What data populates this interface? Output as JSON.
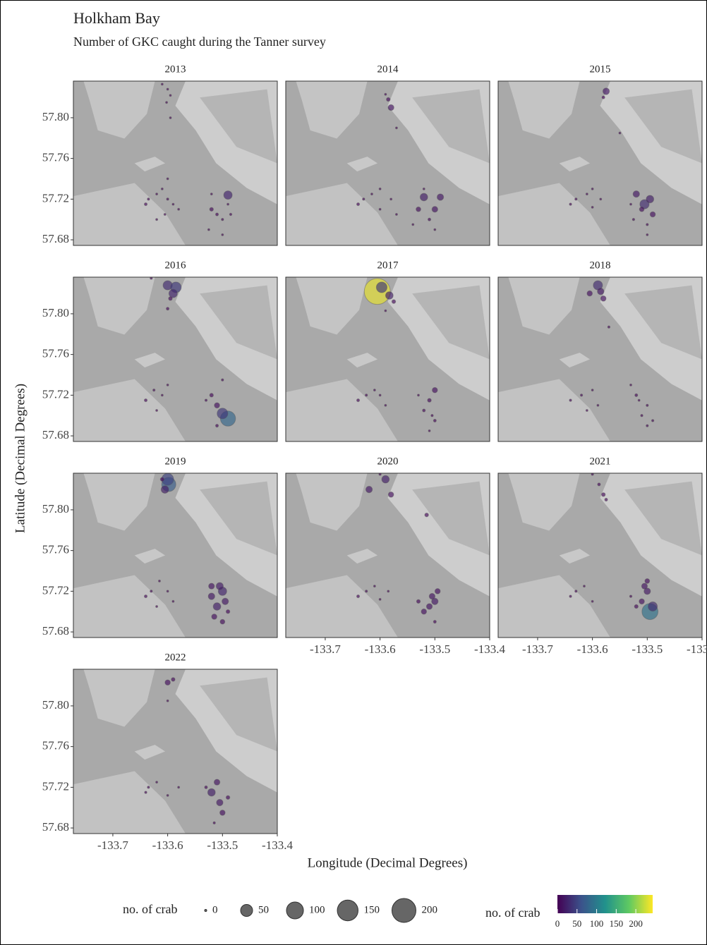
{
  "chart_data": {
    "type": "scatter",
    "title": "Holkham Bay",
    "subtitle": "Number of GKC caught during the Tanner survey",
    "xlabel": "Longitude (Decimal Degrees)",
    "ylabel": "Latitude (Decimal Degrees)",
    "xlim": [
      -133.772,
      -133.4
    ],
    "xticks": [
      -133.7,
      -133.6,
      -133.5,
      -133.4
    ],
    "ylim": [
      57.6745,
      57.836
    ],
    "yticks": [
      {
        "value": 57.68,
        "label": "57.68"
      },
      {
        "value": 57.72,
        "label": "57.72"
      },
      {
        "value": 57.76,
        "label": "57.76"
      },
      {
        "value": 57.8,
        "label": "57.80"
      }
    ],
    "colormap": [
      "#440154",
      "#3b528b",
      "#21918c",
      "#5ec962",
      "#fde725"
    ],
    "color_lim": [
      0,
      243
    ],
    "size_legend": {
      "title": "no. of crab",
      "values": [
        0,
        50,
        100,
        150,
        200
      ]
    },
    "color_legend": {
      "title": "no. of crab",
      "ticks": [
        0,
        50,
        100,
        150,
        200
      ]
    },
    "facets": [
      {
        "title": "2013",
        "x": [
          -133.61,
          -133.6,
          -133.595,
          -133.602,
          -133.595,
          -133.64,
          -133.635,
          -133.62,
          -133.61,
          -133.6,
          -133.59,
          -133.605,
          -133.62,
          -133.58,
          -133.6,
          -133.49,
          -133.52,
          -133.51,
          -133.5,
          -133.525,
          -133.49,
          -133.5,
          -133.485,
          -133.52
        ],
        "y": [
          57.833,
          57.828,
          57.822,
          57.815,
          57.8,
          57.715,
          57.72,
          57.725,
          57.73,
          57.72,
          57.715,
          57.705,
          57.7,
          57.71,
          57.74,
          57.724,
          57.71,
          57.705,
          57.7,
          57.69,
          57.715,
          57.685,
          57.705,
          57.725
        ],
        "sizes": [
          1,
          1,
          1,
          1,
          1,
          3,
          2,
          1,
          1,
          2,
          1,
          1,
          1,
          1,
          1,
          25,
          5,
          3,
          2,
          1,
          1,
          1,
          2,
          1
        ]
      },
      {
        "title": "2014",
        "x": [
          -133.59,
          -133.585,
          -133.58,
          -133.57,
          -133.64,
          -133.63,
          -133.615,
          -133.6,
          -133.58,
          -133.57,
          -133.6,
          -133.52,
          -133.49,
          -133.5,
          -133.53,
          -133.51,
          -133.54,
          -133.5,
          -133.52
        ],
        "y": [
          57.823,
          57.818,
          57.81,
          57.79,
          57.715,
          57.72,
          57.725,
          57.71,
          57.72,
          57.705,
          57.73,
          57.722,
          57.722,
          57.71,
          57.71,
          57.7,
          57.695,
          57.69,
          57.73
        ],
        "sizes": [
          1,
          5,
          12,
          1,
          3,
          2,
          1,
          1,
          1,
          1,
          1,
          20,
          15,
          12,
          8,
          3,
          1,
          1,
          1
        ]
      },
      {
        "title": "2015",
        "x": [
          -133.575,
          -133.58,
          -133.55,
          -133.64,
          -133.63,
          -133.61,
          -133.6,
          -133.585,
          -133.6,
          -133.52,
          -133.505,
          -133.495,
          -133.49,
          -133.51,
          -133.525,
          -133.5,
          -133.53,
          -133.5
        ],
        "y": [
          57.826,
          57.82,
          57.785,
          57.715,
          57.72,
          57.725,
          57.712,
          57.72,
          57.73,
          57.725,
          57.715,
          57.72,
          57.705,
          57.71,
          57.7,
          57.695,
          57.715,
          57.685
        ],
        "sizes": [
          15,
          3,
          1,
          2,
          2,
          1,
          1,
          1,
          1,
          15,
          30,
          20,
          10,
          8,
          2,
          2,
          1,
          1
        ]
      },
      {
        "title": "2016",
        "x": [
          -133.6,
          -133.585,
          -133.59,
          -133.595,
          -133.6,
          -133.63,
          -133.64,
          -133.625,
          -133.61,
          -133.6,
          -133.62,
          -133.49,
          -133.5,
          -133.51,
          -133.52,
          -133.53,
          -133.5,
          -133.51
        ],
        "y": [
          57.828,
          57.826,
          57.82,
          57.815,
          57.805,
          57.835,
          57.715,
          57.725,
          57.72,
          57.73,
          57.705,
          57.697,
          57.702,
          57.71,
          57.72,
          57.715,
          57.735,
          57.69
        ],
        "sizes": [
          30,
          40,
          25,
          5,
          3,
          2,
          3,
          2,
          1,
          1,
          1,
          80,
          40,
          10,
          5,
          2,
          2,
          3
        ]
      },
      {
        "title": "2017",
        "x": [
          -133.605,
          -133.597,
          -133.583,
          -133.575,
          -133.59,
          -133.64,
          -133.625,
          -133.61,
          -133.59,
          -133.6,
          -133.5,
          -133.51,
          -133.52,
          -133.505,
          -133.53,
          -133.5,
          -133.51
        ],
        "y": [
          57.822,
          57.826,
          57.818,
          57.812,
          57.803,
          57.715,
          57.72,
          57.725,
          57.71,
          57.72,
          57.725,
          57.715,
          57.705,
          57.7,
          57.72,
          57.695,
          57.685
        ],
        "sizes": [
          235,
          40,
          20,
          5,
          1,
          3,
          2,
          1,
          1,
          1,
          10,
          5,
          3,
          2,
          1,
          3,
          1
        ]
      },
      {
        "title": "2018",
        "x": [
          -133.59,
          -133.605,
          -133.58,
          -133.585,
          -133.57,
          -133.64,
          -133.62,
          -133.6,
          -133.59,
          -133.61,
          -133.52,
          -133.5,
          -133.51,
          -133.49,
          -133.53,
          -133.5,
          -133.515
        ],
        "y": [
          57.828,
          57.82,
          57.815,
          57.822,
          57.787,
          57.715,
          57.72,
          57.725,
          57.71,
          57.705,
          57.72,
          57.71,
          57.7,
          57.695,
          57.73,
          57.69,
          57.715
        ],
        "sizes": [
          30,
          10,
          10,
          15,
          2,
          2,
          2,
          1,
          1,
          1,
          3,
          2,
          2,
          2,
          1,
          2,
          1
        ]
      },
      {
        "title": "2019",
        "x": [
          -133.598,
          -133.6,
          -133.605,
          -133.61,
          -133.64,
          -133.63,
          -133.615,
          -133.6,
          -133.59,
          -133.62,
          -133.5,
          -133.51,
          -133.52,
          -133.495,
          -133.505,
          -133.515,
          -133.5,
          -133.52,
          -133.49
        ],
        "y": [
          57.825,
          57.83,
          57.82,
          57.83,
          57.715,
          57.72,
          57.73,
          57.72,
          57.71,
          57.705,
          57.72,
          57.705,
          57.715,
          57.71,
          57.725,
          57.695,
          57.69,
          57.725,
          57.7
        ],
        "sizes": [
          70,
          50,
          20,
          5,
          3,
          2,
          1,
          1,
          1,
          1,
          25,
          20,
          15,
          15,
          18,
          10,
          8,
          12,
          5
        ]
      },
      {
        "title": "2020",
        "x": [
          -133.62,
          -133.59,
          -133.58,
          -133.515,
          -133.6,
          -133.64,
          -133.625,
          -133.61,
          -133.6,
          -133.585,
          -133.5,
          -133.51,
          -133.52,
          -133.505,
          -133.495,
          -133.53,
          -133.5
        ],
        "y": [
          57.82,
          57.83,
          57.815,
          57.795,
          57.835,
          57.715,
          57.72,
          57.725,
          57.712,
          57.72,
          57.71,
          57.705,
          57.7,
          57.715,
          57.72,
          57.71,
          57.69
        ],
        "sizes": [
          15,
          20,
          10,
          5,
          2,
          3,
          2,
          1,
          1,
          1,
          15,
          12,
          10,
          12,
          10,
          5,
          3
        ]
      },
      {
        "title": "2021",
        "x": [
          -133.6,
          -133.588,
          -133.575,
          -133.58,
          -133.64,
          -133.63,
          -133.615,
          -133.6,
          -133.495,
          -133.49,
          -133.5,
          -133.51,
          -133.505,
          -133.52,
          -133.53,
          -133.5
        ],
        "y": [
          57.835,
          57.825,
          57.81,
          57.815,
          57.715,
          57.72,
          57.725,
          57.71,
          57.7,
          57.705,
          57.72,
          57.71,
          57.725,
          57.705,
          57.715,
          57.73
        ],
        "sizes": [
          2,
          3,
          3,
          5,
          2,
          2,
          1,
          1,
          90,
          30,
          15,
          10,
          12,
          5,
          2,
          8
        ]
      },
      {
        "title": "2022",
        "x": [
          -133.6,
          -133.59,
          -133.6,
          -133.64,
          -133.635,
          -133.62,
          -133.6,
          -133.58,
          -133.52,
          -133.51,
          -133.505,
          -133.5,
          -133.53,
          -133.515,
          -133.49
        ],
        "y": [
          57.823,
          57.826,
          57.805,
          57.715,
          57.72,
          57.725,
          57.712,
          57.72,
          57.715,
          57.725,
          57.705,
          57.695,
          57.72,
          57.685,
          57.71
        ],
        "sizes": [
          10,
          5,
          1,
          2,
          2,
          1,
          1,
          1,
          20,
          12,
          15,
          10,
          3,
          2,
          5
        ]
      }
    ]
  }
}
